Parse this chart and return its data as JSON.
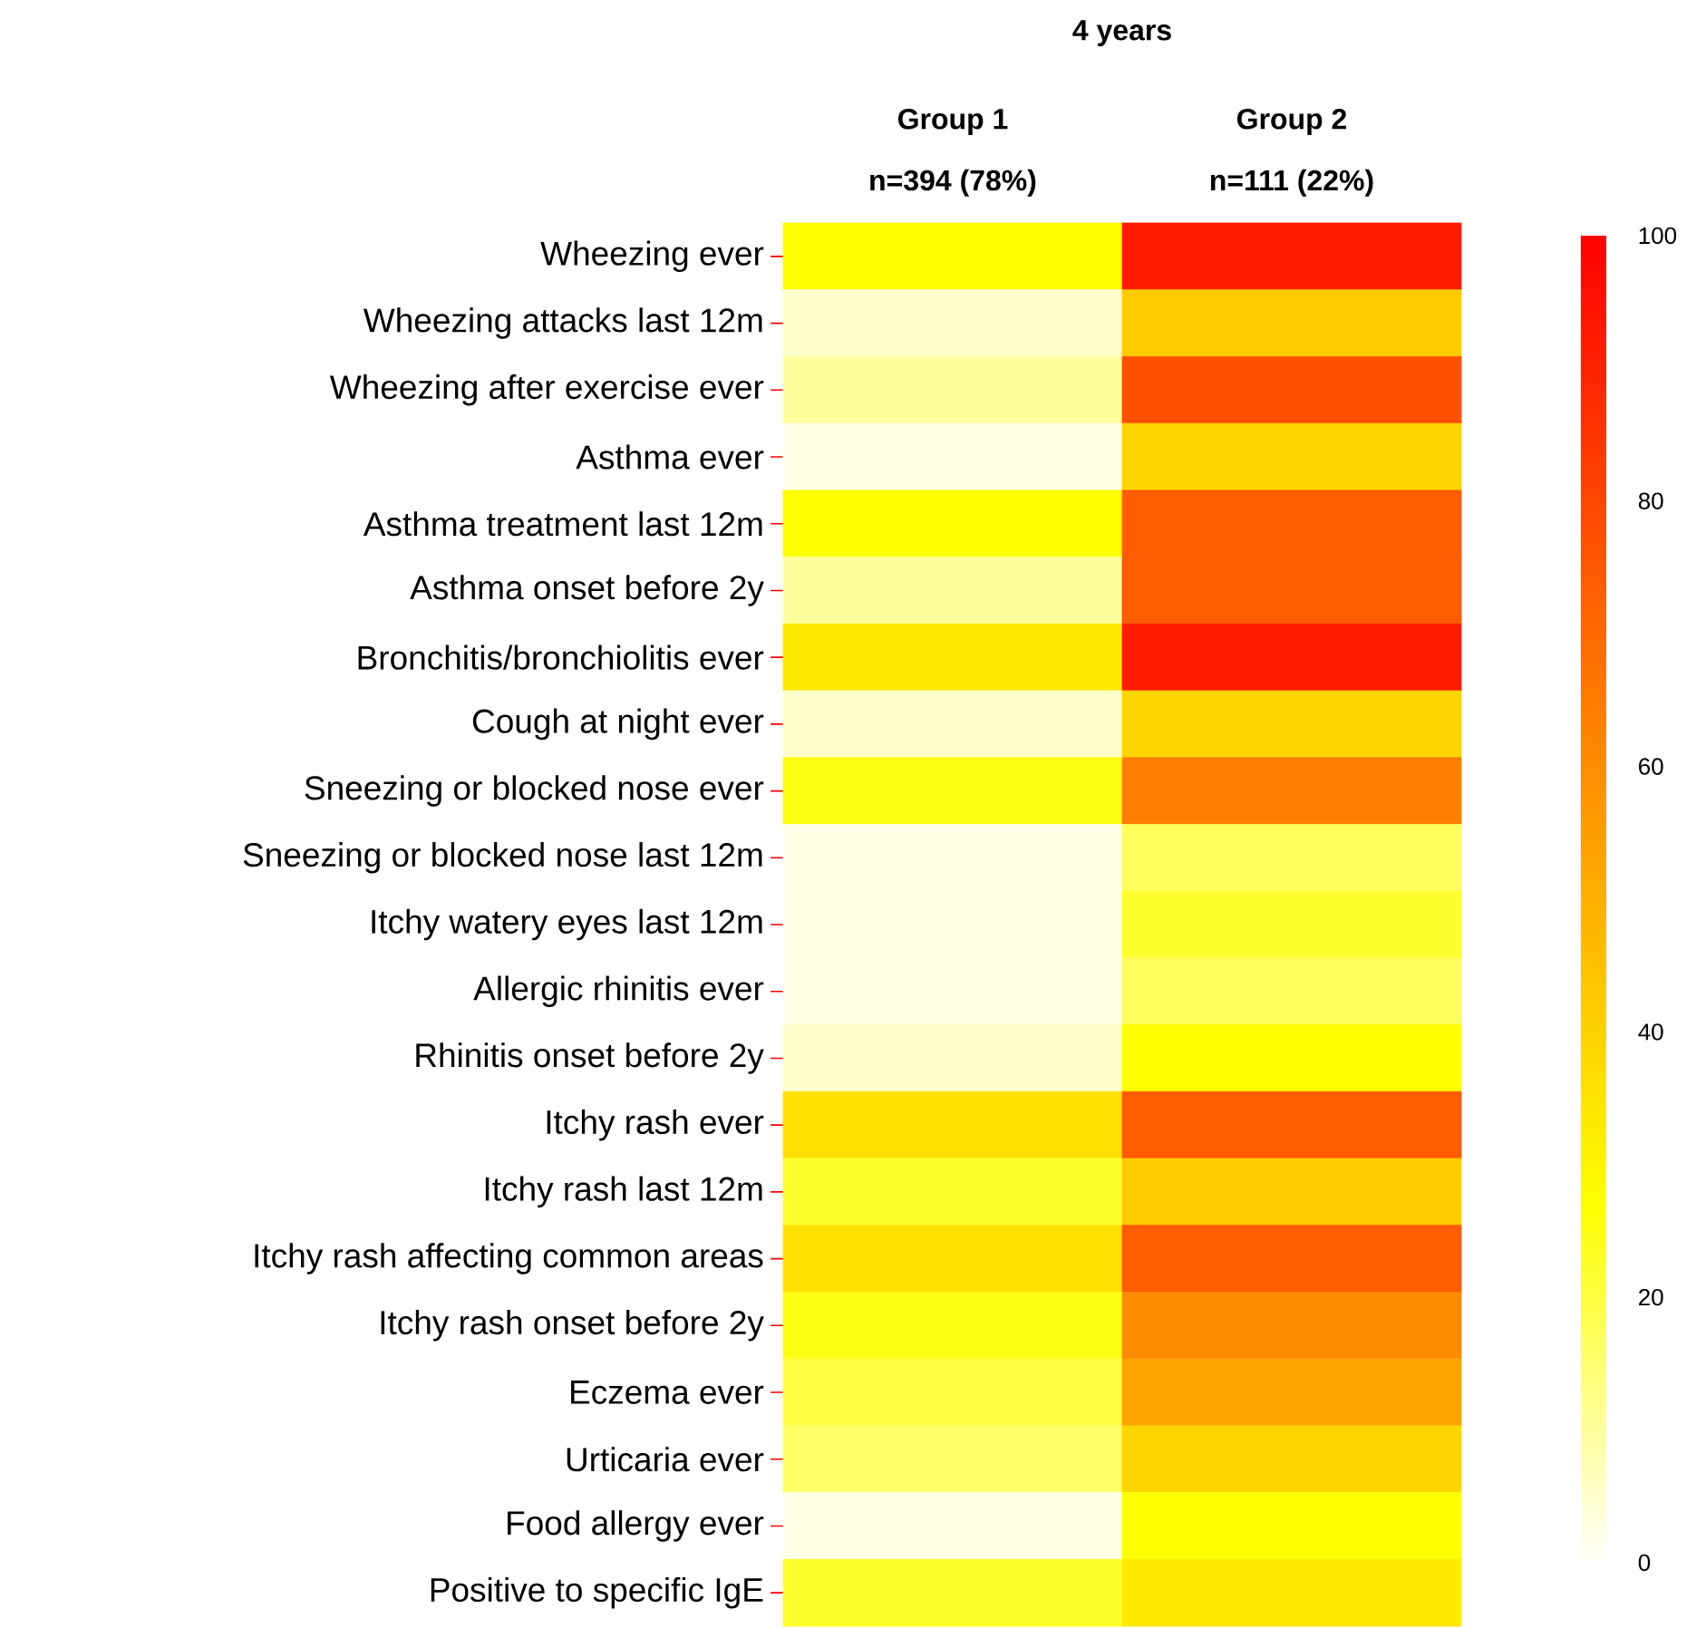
{
  "chart_data": {
    "type": "heatmap",
    "title": "4 years",
    "categories": [
      "Group 1",
      "Group 2"
    ],
    "annotations": [
      "n=394 (78%)",
      "n=111 (22%)"
    ],
    "y_categories": [
      "Wheezing ever",
      "Wheezing attacks last 12m",
      "Wheezing after exercise ever",
      "Asthma ever",
      "Asthma treatment last 12m",
      "Asthma onset before 2y",
      "Bronchitis/bronchiolitis ever",
      "Cough at night ever",
      "Sneezing or blocked nose ever",
      "Sneezing or blocked nose last 12m",
      "Itchy watery eyes last 12m",
      "Allergic rhinitis ever",
      "Rhinitis onset before 2y",
      "Itchy rash ever",
      "Itchy rash last 12m",
      "Itchy rash affecting common areas",
      "Itchy rash onset before 2y",
      "Eczema ever",
      "Urticaria ever",
      "Food allergy ever",
      "Positive to specific IgE"
    ],
    "cells": [
      [
        27,
        92
      ],
      [
        5,
        42
      ],
      [
        10,
        77
      ],
      [
        2,
        39
      ],
      [
        27,
        74
      ],
      [
        10,
        74
      ],
      [
        33,
        92
      ],
      [
        5,
        39
      ],
      [
        25,
        64
      ],
      [
        2,
        17
      ],
      [
        2,
        22
      ],
      [
        2,
        17
      ],
      [
        5,
        27
      ],
      [
        36,
        74
      ],
      [
        22,
        42
      ],
      [
        36,
        74
      ],
      [
        25,
        60
      ],
      [
        20,
        53
      ],
      [
        16,
        39
      ],
      [
        2,
        27
      ],
      [
        22,
        33
      ]
    ],
    "clim": [
      0,
      100
    ],
    "cticks": [
      0,
      20,
      40,
      60,
      80,
      100
    ]
  }
}
